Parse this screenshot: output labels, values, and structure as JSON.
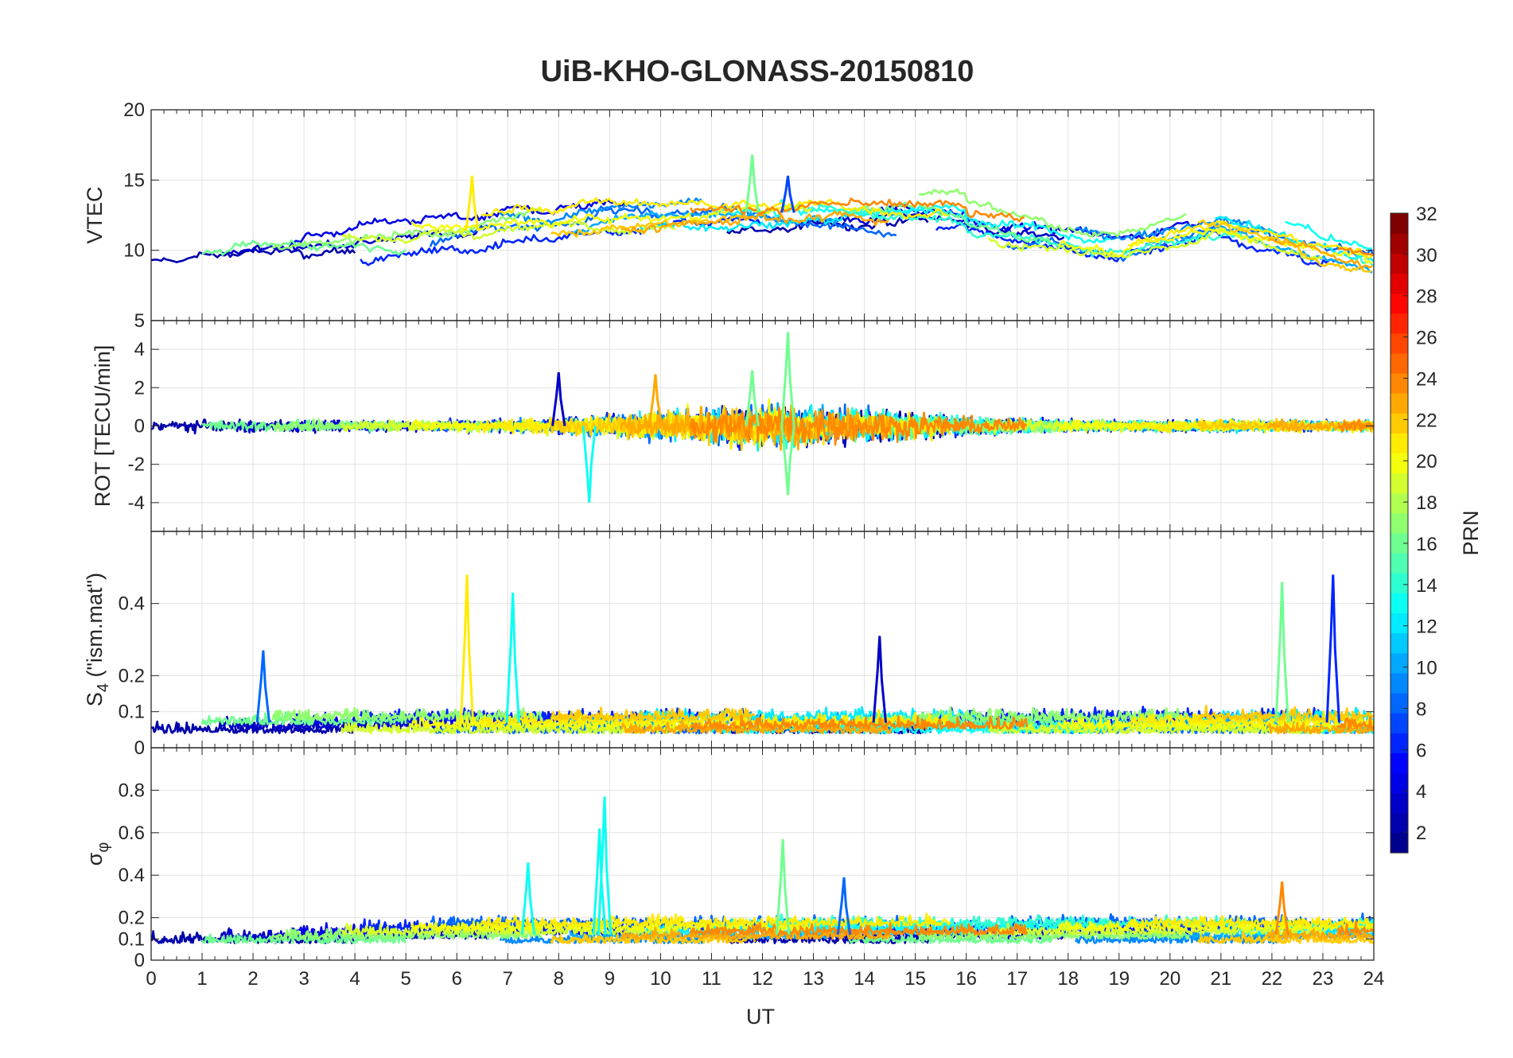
{
  "chart_data": {
    "title": "UiB-KHO-GLONASS-20150810",
    "type": "line",
    "xlabel": "UT",
    "xlim": [
      0,
      24
    ],
    "x_ticks": [
      "0",
      "1",
      "2",
      "3",
      "4",
      "5",
      "6",
      "7",
      "8",
      "9",
      "10",
      "11",
      "12",
      "13",
      "14",
      "15",
      "16",
      "17",
      "18",
      "19",
      "20",
      "21",
      "22",
      "23",
      "24"
    ],
    "grid": "on",
    "colorbar": {
      "label": "PRN",
      "range": [
        1,
        32
      ],
      "ticks": [
        "2",
        "4",
        "6",
        "8",
        "10",
        "12",
        "14",
        "16",
        "18",
        "20",
        "22",
        "24",
        "26",
        "28",
        "30",
        "32"
      ],
      "colormap": [
        "#00008f",
        "#0000ff",
        "#0080ff",
        "#00ffff",
        "#80ff80",
        "#ffff00",
        "#ff8000",
        "#ff0000",
        "#800000"
      ]
    },
    "panels": [
      {
        "id": "vtec",
        "ylabel": "VTEC",
        "ylim": [
          5,
          20
        ],
        "y_ticks": [
          "5",
          "10",
          "15",
          "20"
        ],
        "y_tick_values": [
          5,
          10,
          15,
          20
        ],
        "series_summary": "Multiple GLONASS PRN arcs; values ~8-12 TECU at 0-6 UT, rising to ~11-16 TECU at 8-16 UT, ~8-13 TECU after 18 UT"
      },
      {
        "id": "rot",
        "ylabel": "ROT [TECU/min]",
        "ylim": [
          -5.5,
          5.5
        ],
        "y_ticks": [
          "-4",
          "-2",
          "0",
          "2",
          "4"
        ],
        "y_tick_values": [
          -4,
          -2,
          0,
          2,
          4
        ],
        "series_summary": "Fluctuations around 0 within ±1, spikes up to ~+4.9 near 12.5 UT and down to ~-4 near 8.6 UT"
      },
      {
        "id": "s4",
        "ylabel_main": "S",
        "ylabel_sub": "4",
        "ylabel_rest": " (\"ism.mat\")",
        "ylim": [
          0,
          0.6
        ],
        "y_ticks": [
          "0",
          "0.1",
          "0.2",
          "0.4"
        ],
        "y_tick_values": [
          0,
          0.1,
          0.2,
          0.4
        ],
        "series_summary": "Background ~0.05-0.1, spikes ~0.48 at 6.2 UT, ~0.43 at 7.1 UT, ~0.46 at 22.2 UT, ~0.48 at 23.2 UT"
      },
      {
        "id": "sigma_phi",
        "ylabel_main": "σ",
        "ylabel_sub": "φ",
        "ylim": [
          0,
          1
        ],
        "y_ticks": [
          "0",
          "0.1",
          "0.2",
          "0.4",
          "0.6",
          "0.8"
        ],
        "y_tick_values": [
          0,
          0.1,
          0.2,
          0.4,
          0.6,
          0.8
        ],
        "series_summary": "Background ~0.08-0.2, spikes ~0.77 at 8.9 UT, ~0.62 at 8.8 UT, ~0.57 at 12.4 UT, ~0.46 at 7.4 UT"
      }
    ],
    "spikes": {
      "vtec": [
        [
          6.3,
          15.3,
          21
        ],
        [
          11.8,
          16.8,
          16
        ],
        [
          12.5,
          15.3,
          7
        ]
      ],
      "rot": [
        [
          12.5,
          4.9,
          16
        ],
        [
          8.6,
          -4.0,
          13
        ],
        [
          12.5,
          -3.6,
          16
        ],
        [
          11.8,
          2.9,
          16
        ],
        [
          8.0,
          2.8,
          3
        ],
        [
          9.9,
          2.7,
          23
        ]
      ],
      "s4": [
        [
          6.2,
          0.48,
          21
        ],
        [
          7.1,
          0.43,
          13
        ],
        [
          22.2,
          0.46,
          16
        ],
        [
          23.2,
          0.48,
          6
        ],
        [
          2.2,
          0.27,
          8
        ],
        [
          14.3,
          0.31,
          3
        ]
      ],
      "sigma_phi": [
        [
          8.9,
          0.77,
          13
        ],
        [
          8.8,
          0.62,
          13
        ],
        [
          12.4,
          0.57,
          16
        ],
        [
          7.4,
          0.46,
          13
        ],
        [
          13.6,
          0.39,
          8
        ],
        [
          22.2,
          0.37,
          24
        ]
      ]
    }
  }
}
